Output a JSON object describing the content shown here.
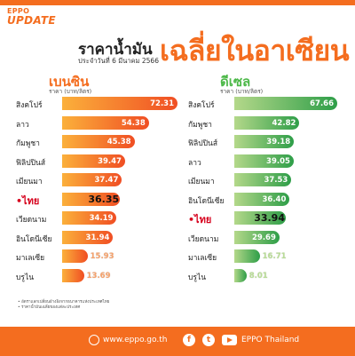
{
  "header": {
    "brand_line1": "EPPO",
    "brand_line2": "UPDATE",
    "title_part1": "ราคาน้ำมัน",
    "title_part2": "เฉลี่ยในอาเซียน",
    "date": "ประจำวันที่ 6 มีนาคม 2566"
  },
  "colors": {
    "orange": "#f46d1f",
    "green": "#4cb848",
    "thailand_red": "#d6001c"
  },
  "chart_data": [
    {
      "type": "bar",
      "orientation": "horizontal",
      "title": "เบนซิน",
      "unit_label": "ราคา (บาท/ลิตร)",
      "categories": [
        "สิงคโปร์",
        "ลาว",
        "กัมพูชา",
        "ฟิลิปปินส์",
        "เมียนมา",
        "•ไทย",
        "เวียดนาม",
        "อินโดนีเซีย",
        "มาเลเซีย",
        "บรูไน"
      ],
      "values": [
        72.31,
        54.38,
        45.38,
        39.47,
        37.47,
        36.35,
        34.19,
        31.94,
        15.93,
        13.69
      ],
      "value_labels": [
        "72.31",
        "54.38",
        "45.38",
        "39.47",
        "37.47",
        "36.35",
        "34.19",
        "31.94",
        "15.93",
        "13.69"
      ],
      "highlight": "•ไทย"
    },
    {
      "type": "bar",
      "orientation": "horizontal",
      "title": "ดีเซล",
      "unit_label": "ราคา (บาท/ลิตร)",
      "categories": [
        "สิงคโปร์",
        "กัมพูชา",
        "ฟิลิปปินส์",
        "ลาว",
        "เมียนมา",
        "อินโดนีเซีย",
        "•ไทย",
        "เวียดนาม",
        "มาเลเซีย",
        "บรูไน"
      ],
      "values": [
        67.66,
        42.82,
        39.18,
        39.05,
        37.53,
        36.4,
        33.94,
        29.69,
        16.71,
        8.01
      ],
      "value_labels": [
        "67.66",
        "42.82",
        "39.18",
        "39.05",
        "37.53",
        "36.40",
        "33.94",
        "29.69",
        "16.71",
        "8.01"
      ],
      "highlight": "•ไทย"
    }
  ],
  "notes": [
    "• อัตราแลกเปลี่ยนอ้างอิงจากธนาคารแห่งประเทศไทย",
    "• ราคาน้ำมันเฉลี่ยของแต่ละประเทศ"
  ],
  "footer": {
    "website": "www.eppo.go.th",
    "facebook_icon": "facebook-icon",
    "twitter_icon": "twitter-icon",
    "page_name": "EPPO Thailand"
  }
}
